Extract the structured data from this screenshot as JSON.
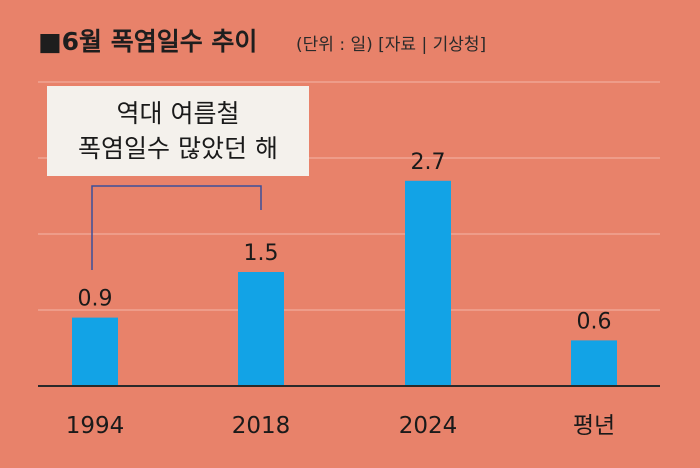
{
  "header": {
    "title": "■6월 폭염일수 추이",
    "unit_source": "(단위 : 일) [자료 | 기상청]"
  },
  "annotation": {
    "line1": "역대 여름철",
    "line2": "폭염일수 많았던 해"
  },
  "chart_data": {
    "type": "bar",
    "title": "6월 폭염일수 추이",
    "ylabel": "",
    "xlabel": "",
    "categories": [
      "1994",
      "2018",
      "2024",
      "평년"
    ],
    "values": [
      0.9,
      1.5,
      2.7,
      0.6
    ],
    "value_labels": [
      "0.9",
      "1.5",
      "2.7",
      "0.6"
    ],
    "unit": "일",
    "source": "기상청",
    "ylim": [
      0,
      4
    ],
    "grid": true,
    "colors": {
      "bar": "#12a3e6",
      "background": "#e8826a"
    }
  }
}
